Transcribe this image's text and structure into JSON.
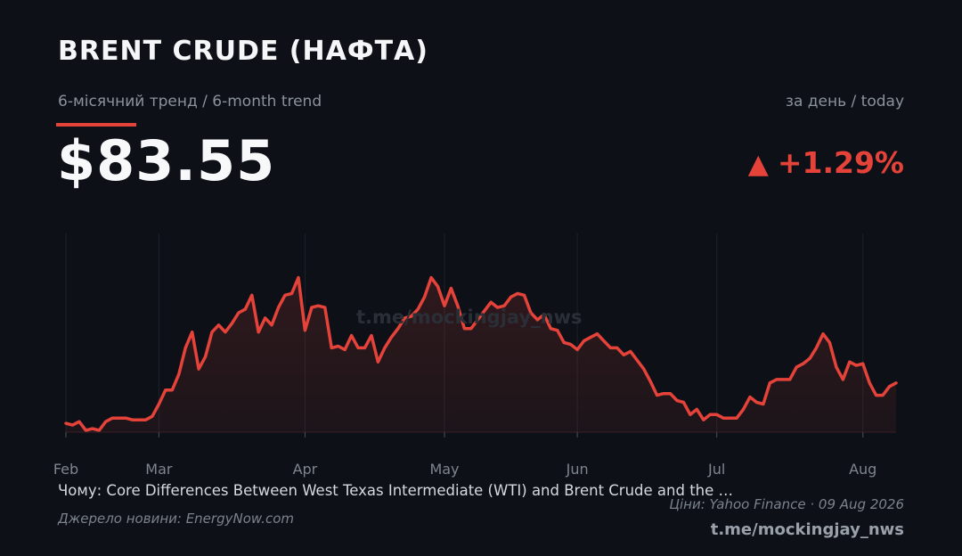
{
  "header": {
    "title": "BRENT CRUDE (НАФТА)",
    "subtitle": "6-місячний тренд / 6-month trend",
    "today_label": "за день / today",
    "price": "$83.55",
    "change_arrow": "▲",
    "change": "+1.29%",
    "accent_color": "#e5433a"
  },
  "watermark": "t.me/mockingjay_nws",
  "chart_data": {
    "type": "area",
    "x_ticks": [
      {
        "label": "Feb",
        "index": 0
      },
      {
        "label": "Mar",
        "index": 14
      },
      {
        "label": "Apr",
        "index": 36
      },
      {
        "label": "May",
        "index": 57
      },
      {
        "label": "Jun",
        "index": 77
      },
      {
        "label": "Jul",
        "index": 98
      },
      {
        "label": "Aug",
        "index": 120
      }
    ],
    "values": [
      0.05,
      0.04,
      0.06,
      0.01,
      0.02,
      0.01,
      0.06,
      0.08,
      0.08,
      0.08,
      0.07,
      0.07,
      0.07,
      0.09,
      0.16,
      0.24,
      0.24,
      0.33,
      0.48,
      0.57,
      0.36,
      0.43,
      0.57,
      0.61,
      0.57,
      0.62,
      0.68,
      0.7,
      0.78,
      0.57,
      0.65,
      0.61,
      0.71,
      0.78,
      0.79,
      0.88,
      0.58,
      0.71,
      0.72,
      0.71,
      0.48,
      0.49,
      0.47,
      0.55,
      0.48,
      0.48,
      0.55,
      0.4,
      0.48,
      0.54,
      0.59,
      0.65,
      0.66,
      0.7,
      0.77,
      0.88,
      0.83,
      0.72,
      0.82,
      0.72,
      0.59,
      0.59,
      0.64,
      0.69,
      0.74,
      0.71,
      0.72,
      0.77,
      0.79,
      0.78,
      0.68,
      0.64,
      0.67,
      0.59,
      0.58,
      0.51,
      0.5,
      0.47,
      0.52,
      0.54,
      0.56,
      0.52,
      0.48,
      0.48,
      0.44,
      0.46,
      0.41,
      0.36,
      0.29,
      0.21,
      0.22,
      0.22,
      0.18,
      0.17,
      0.1,
      0.13,
      0.07,
      0.1,
      0.1,
      0.08,
      0.08,
      0.08,
      0.13,
      0.2,
      0.17,
      0.16,
      0.28,
      0.3,
      0.3,
      0.3,
      0.37,
      0.39,
      0.42,
      0.48,
      0.56,
      0.51,
      0.37,
      0.3,
      0.4,
      0.38,
      0.39,
      0.28,
      0.21,
      0.21,
      0.26,
      0.28
    ],
    "line_color": "#e5433a",
    "grid": "vertical"
  },
  "footer": {
    "article": "Чому: Core Differences Between West Texas Intermediate (WTI) and Brent Crude and the …",
    "news_source": "Джерело новини: EnergyNow.com",
    "price_source": "Ціни: Yahoo Finance · 09 Aug 2026",
    "channel": "t.me/mockingjay_nws"
  }
}
